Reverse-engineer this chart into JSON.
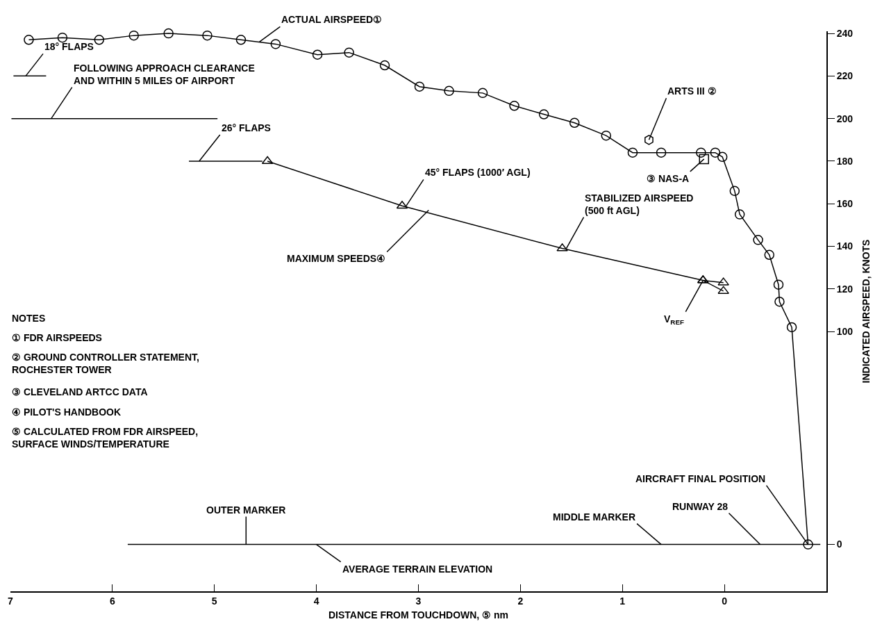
{
  "chart_data": {
    "type": "line",
    "xlabel": "DISTANCE FROM TOUCHDOWN, ⑤ nm",
    "ylabel": "INDICATED AIRSPEED, KNOTS",
    "xlim": [
      7,
      -1.0
    ],
    "xticks": [
      7,
      6,
      5,
      4,
      3,
      2,
      1,
      0
    ],
    "ylim": [
      -22,
      241
    ],
    "yticks": [
      0,
      100,
      120,
      140,
      160,
      180,
      200,
      220,
      240
    ],
    "tick_labels": "xy",
    "series": [
      {
        "color": "#000000",
        "marker": "circle",
        "x": [
          6.82,
          6.49,
          6.13,
          5.79,
          5.45,
          5.07,
          4.74,
          4.4,
          3.99,
          3.68,
          3.33,
          2.99,
          2.7,
          2.37,
          2.06,
          1.77,
          1.47,
          1.16,
          0.9,
          0.62,
          0.23,
          0.09,
          0.02,
          -0.1,
          -0.15,
          -0.33,
          -0.44,
          -0.53,
          -0.54,
          -0.66,
          -0.82
        ],
        "values": [
          237,
          238,
          237,
          239,
          240,
          239,
          237,
          235,
          230,
          231,
          225,
          215,
          213,
          212,
          206,
          202,
          198,
          192,
          184,
          184,
          184,
          184,
          182,
          166,
          155,
          143,
          136,
          122,
          114,
          102,
          0
        ]
      },
      {
        "color": "#000000",
        "marker": "none",
        "x": [
          6.97,
          6.65
        ],
        "values": [
          220,
          220
        ]
      },
      {
        "color": "#000000",
        "marker": "none",
        "x": [
          6.99,
          4.97
        ],
        "values": [
          200,
          200
        ]
      },
      {
        "color": "#000000",
        "marker": "none",
        "x": [
          5.25,
          4.53
        ],
        "values": [
          180,
          180
        ]
      },
      {
        "color": "#000000",
        "marker": "triangle",
        "x": [
          4.48,
          3.16,
          1.59,
          0.21
        ],
        "values": [
          180,
          159,
          139,
          124
        ]
      },
      {
        "color": "#000000",
        "marker": "triangle",
        "x": [
          0.01,
          0.21,
          0.01
        ],
        "values": [
          123,
          124,
          119
        ]
      },
      {
        "type": "scatter",
        "color": "#000000",
        "x": [
          0.74
        ],
        "values": [
          190
        ]
      },
      {
        "type": "scatter",
        "color": "#000000",
        "marker": "square",
        "x": [
          0.2
        ],
        "values": [
          181
        ]
      },
      {
        "color": "#000000",
        "marker": "none",
        "x": [
          5.85,
          -0.94
        ],
        "values": [
          0,
          0
        ]
      }
    ],
    "annotations": [
      {
        "text": "ACTUAL AIRSPEED①",
        "x": 4.56,
        "y": 236
      },
      {
        "text": "18° FLAPS",
        "x": 6.85,
        "y": 220
      },
      {
        "text": "FOLLOWING APPROACH CLEARANCE\nAND WITHIN 5 MILES OF AIRPORT",
        "x": 6.6,
        "y": 200
      },
      {
        "text": "26° FLAPS",
        "x": 5.15,
        "y": 180
      },
      {
        "text": "45° FLAPS (1000′ AGL)",
        "x": 3.12,
        "y": 159
      },
      {
        "text": "STABILIZED AIRSPEED\n(500 ft AGL)",
        "x": 1.55,
        "y": 139
      },
      {
        "text": "V$_{REF}$",
        "x": 0.21,
        "y": 124
      },
      {
        "text": "ARTS III ②",
        "x": 0.74,
        "y": 190
      },
      {
        "text": "③ NAS-A",
        "x": 0.2,
        "y": 181
      },
      {
        "text": "MAXIMUM SPEEDS④",
        "x": 2.9,
        "y": 157
      },
      {
        "text": "OUTER MARKER",
        "x": 4.69,
        "y": 0
      },
      {
        "text": "AVERAGE TERRAIN ELEVATION",
        "x": 4.0,
        "y": 0
      },
      {
        "text": "MIDDLE MARKER",
        "x": 0.62,
        "y": 0
      },
      {
        "text": "RUNWAY 28",
        "x": -0.35,
        "y": 0
      },
      {
        "text": "AIRCRAFT FINAL POSITION",
        "x": -0.82,
        "y": 0
      },
      "NOTES",
      "① FDR AIRSPEEDS",
      "② GROUND CONTROLLER STATEMENT,\nROCHESTER TOWER",
      "③ CLEVELAND ARTCC DATA",
      "④ PILOT'S HANDBOOK",
      "⑤ CALCULATED FROM FDR AIRSPEED,\nSURFACE WINDS/TEMPERATURE"
    ]
  }
}
